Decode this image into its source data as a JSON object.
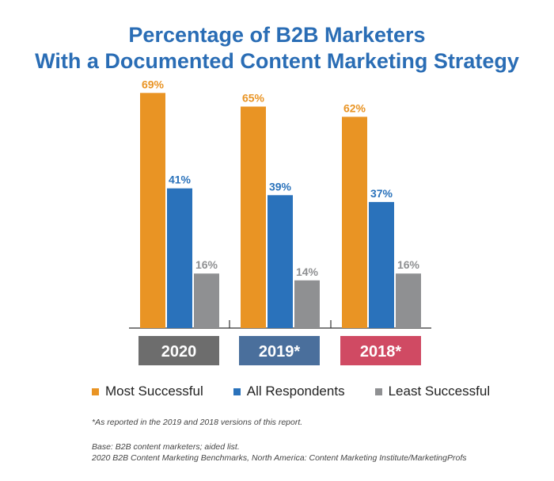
{
  "chart_data": {
    "type": "bar",
    "title": "Percentage of B2B Marketers",
    "subtitle": "With a Documented Content Marketing Strategy",
    "categories": [
      "2020",
      "2019*",
      "2018*"
    ],
    "category_colors": [
      "#6d6d6d",
      "#4a6f9c",
      "#d04a63"
    ],
    "series": [
      {
        "name": "Most Successful",
        "color": "#e99424",
        "values": [
          69,
          65,
          62
        ]
      },
      {
        "name": "All Respondents",
        "color": "#2a72bb",
        "values": [
          41,
          39,
          37
        ]
      },
      {
        "name": "Least Successful",
        "color": "#8f9092",
        "values": [
          16,
          14,
          16
        ]
      }
    ],
    "data_label_suffix": "%",
    "ylim": [
      0,
      70
    ],
    "grid": false,
    "legend_position": "bottom"
  },
  "notes": {
    "footnote": "*As reported in the 2019 and 2018 versions of this report.",
    "base": "Base: B2B content marketers; aided list.",
    "source": "2020 B2B Content Marketing Benchmarks, North America: Content Marketing Institute/MarketingProfs"
  }
}
